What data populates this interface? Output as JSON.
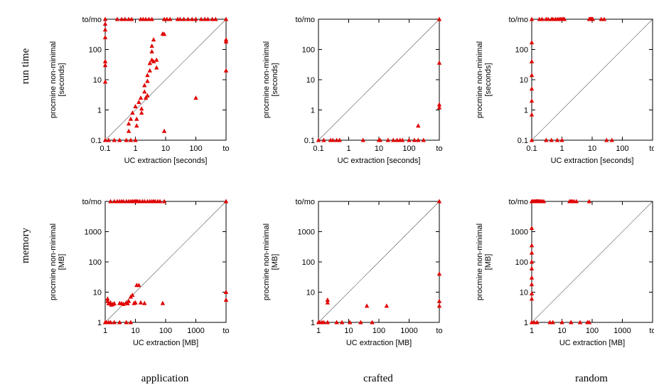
{
  "row_labels": [
    "run time",
    "memory"
  ],
  "column_labels": [
    "application",
    "crafted",
    "random"
  ],
  "colors": {
    "points": "#e00000",
    "axes": "#000000",
    "reference_lines": "#555555"
  },
  "chart_data": [
    {
      "type": "scatter",
      "row": "run time",
      "column": "application",
      "scale": "log",
      "xlabel": "UC extraction [seconds]",
      "ylabel": [
        "procmine non-minimal",
        "[seconds]"
      ],
      "xticks": [
        {
          "v": 0.1,
          "label": "0.1"
        },
        {
          "v": 1,
          "label": "1"
        },
        {
          "v": 10,
          "label": "10"
        },
        {
          "v": 100,
          "label": "100"
        },
        {
          "v": 1000,
          "label": "to"
        }
      ],
      "yticks": [
        {
          "v": 0.1,
          "label": "0.1"
        },
        {
          "v": 1,
          "label": "1"
        },
        {
          "v": 10,
          "label": "10"
        },
        {
          "v": 100,
          "label": "100"
        },
        {
          "v": 1000,
          "label": "to/mo"
        }
      ],
      "xlim": [
        0.1,
        1000
      ],
      "ylim": [
        0.1,
        1000
      ],
      "grid": false,
      "points": [
        [
          0.1,
          1000
        ],
        [
          0.1,
          700
        ],
        [
          0.1,
          450
        ],
        [
          0.1,
          250
        ],
        [
          0.1,
          40
        ],
        [
          0.1,
          30
        ],
        [
          0.1,
          8.5
        ],
        [
          0.1,
          0.1
        ],
        [
          0.13,
          0.1
        ],
        [
          0.2,
          0.1
        ],
        [
          0.3,
          0.1
        ],
        [
          0.5,
          0.1
        ],
        [
          0.7,
          0.1
        ],
        [
          1,
          0.1
        ],
        [
          0.6,
          0.2
        ],
        [
          0.6,
          0.35
        ],
        [
          0.7,
          0.5
        ],
        [
          0.8,
          0.8
        ],
        [
          1,
          1.3
        ],
        [
          1.1,
          0.3
        ],
        [
          1.1,
          0.5
        ],
        [
          1.3,
          1.8
        ],
        [
          1.5,
          2.5
        ],
        [
          1.6,
          1.1
        ],
        [
          1.6,
          0.8
        ],
        [
          2,
          4
        ],
        [
          2,
          6.5
        ],
        [
          2.2,
          2.5
        ],
        [
          2.5,
          3
        ],
        [
          2.5,
          9
        ],
        [
          2.5,
          14
        ],
        [
          3,
          35
        ],
        [
          3,
          20
        ],
        [
          3.5,
          130
        ],
        [
          3.5,
          85
        ],
        [
          3.5,
          45
        ],
        [
          4,
          40
        ],
        [
          4,
          210
        ],
        [
          5,
          45
        ],
        [
          5,
          25
        ],
        [
          8,
          330
        ],
        [
          9,
          320
        ],
        [
          9,
          0.2
        ],
        [
          100,
          2.5
        ],
        [
          0.25,
          1000
        ],
        [
          0.35,
          1000
        ],
        [
          0.45,
          1000
        ],
        [
          0.6,
          1000
        ],
        [
          0.75,
          1000
        ],
        [
          1.5,
          1000
        ],
        [
          1.8,
          1000
        ],
        [
          2.2,
          1000
        ],
        [
          2.8,
          1000
        ],
        [
          3.5,
          1000
        ],
        [
          9,
          1000
        ],
        [
          11,
          1000
        ],
        [
          14,
          1000
        ],
        [
          25,
          1000
        ],
        [
          30,
          1000
        ],
        [
          40,
          1000
        ],
        [
          55,
          1000
        ],
        [
          75,
          1000
        ],
        [
          100,
          1000
        ],
        [
          150,
          1000
        ],
        [
          200,
          1000
        ],
        [
          250,
          1000
        ],
        [
          350,
          1000
        ],
        [
          450,
          1000
        ],
        [
          1000,
          1000
        ],
        [
          1000,
          210
        ],
        [
          1000,
          180
        ],
        [
          1000,
          20
        ]
      ]
    },
    {
      "type": "scatter",
      "row": "run time",
      "column": "crafted",
      "scale": "log",
      "xlabel": "UC extraction [seconds]",
      "ylabel": [
        "procmine non-minimal",
        "[seconds]"
      ],
      "xticks": [
        {
          "v": 0.1,
          "label": "0.1"
        },
        {
          "v": 1,
          "label": "1"
        },
        {
          "v": 10,
          "label": "10"
        },
        {
          "v": 100,
          "label": "100"
        },
        {
          "v": 1000,
          "label": "to"
        }
      ],
      "yticks": [
        {
          "v": 0.1,
          "label": "0.1"
        },
        {
          "v": 1,
          "label": "1"
        },
        {
          "v": 10,
          "label": "10"
        },
        {
          "v": 100,
          "label": "100"
        },
        {
          "v": 1000,
          "label": "to/mo"
        }
      ],
      "xlim": [
        0.1,
        1000
      ],
      "ylim": [
        0.1,
        1000
      ],
      "grid": false,
      "points": [
        [
          0.1,
          0.1
        ],
        [
          0.15,
          0.1
        ],
        [
          0.25,
          0.1
        ],
        [
          0.3,
          0.1
        ],
        [
          0.4,
          0.1
        ],
        [
          0.5,
          0.1
        ],
        [
          3,
          0.1
        ],
        [
          10,
          0.1
        ],
        [
          11,
          0.1
        ],
        [
          20,
          0.1
        ],
        [
          30,
          0.1
        ],
        [
          40,
          0.1
        ],
        [
          50,
          0.1
        ],
        [
          60,
          0.1
        ],
        [
          100,
          0.1
        ],
        [
          150,
          0.1
        ],
        [
          200,
          0.1
        ],
        [
          300,
          0.1
        ],
        [
          200,
          0.3
        ],
        [
          1000,
          1000
        ],
        [
          1000,
          36
        ],
        [
          1000,
          1.5
        ],
        [
          1000,
          1.2
        ]
      ]
    },
    {
      "type": "scatter",
      "row": "run time",
      "column": "random",
      "scale": "log",
      "xlabel": "UC extraction [seconds]",
      "ylabel": [
        "procmine non-minimal",
        "[seconds]"
      ],
      "xticks": [
        {
          "v": 0.1,
          "label": "0.1"
        },
        {
          "v": 1,
          "label": "1"
        },
        {
          "v": 10,
          "label": "10"
        },
        {
          "v": 100,
          "label": "100"
        },
        {
          "v": 1000,
          "label": "to"
        }
      ],
      "yticks": [
        {
          "v": 0.1,
          "label": "0.1"
        },
        {
          "v": 1,
          "label": "1"
        },
        {
          "v": 10,
          "label": "10"
        },
        {
          "v": 100,
          "label": "100"
        },
        {
          "v": 1000,
          "label": "to/mo"
        }
      ],
      "xlim": [
        0.1,
        1000
      ],
      "ylim": [
        0.1,
        1000
      ],
      "grid": false,
      "points": [
        [
          0.1,
          1000
        ],
        [
          0.1,
          170
        ],
        [
          0.1,
          40
        ],
        [
          0.1,
          14
        ],
        [
          0.1,
          5
        ],
        [
          0.1,
          2
        ],
        [
          0.1,
          0.7
        ],
        [
          0.1,
          0.1
        ],
        [
          0.3,
          0.1
        ],
        [
          0.45,
          0.1
        ],
        [
          0.7,
          0.1
        ],
        [
          1,
          0.1
        ],
        [
          30,
          0.1
        ],
        [
          45,
          0.1
        ],
        [
          0.18,
          1000
        ],
        [
          0.22,
          1000
        ],
        [
          0.3,
          1000
        ],
        [
          0.35,
          1000
        ],
        [
          0.45,
          1000
        ],
        [
          0.5,
          1000
        ],
        [
          0.6,
          1000
        ],
        [
          0.7,
          1000
        ],
        [
          0.8,
          1000
        ],
        [
          0.9,
          1000
        ],
        [
          1,
          1000
        ],
        [
          1.1,
          1000
        ],
        [
          1.2,
          1000
        ],
        [
          8,
          1000
        ],
        [
          8.5,
          1000
        ],
        [
          9,
          1000
        ],
        [
          9.5,
          1000
        ],
        [
          10,
          1000
        ],
        [
          10.5,
          1000
        ],
        [
          20,
          1000
        ],
        [
          25,
          1000
        ]
      ]
    },
    {
      "type": "scatter",
      "row": "memory",
      "column": "application",
      "scale": "log",
      "xlabel": "UC extraction [MB]",
      "ylabel": [
        "procmine non-minimal",
        "[MB]"
      ],
      "xticks": [
        {
          "v": 1,
          "label": "1"
        },
        {
          "v": 10,
          "label": "10"
        },
        {
          "v": 100,
          "label": "100"
        },
        {
          "v": 1000,
          "label": "1000"
        },
        {
          "v": 10000,
          "label": "to"
        }
      ],
      "yticks": [
        {
          "v": 1,
          "label": "1"
        },
        {
          "v": 10,
          "label": "10"
        },
        {
          "v": 100,
          "label": "100"
        },
        {
          "v": 1000,
          "label": "1000"
        },
        {
          "v": 10000,
          "label": "to/mo"
        }
      ],
      "xlim": [
        1,
        10000
      ],
      "ylim": [
        1,
        10000
      ],
      "grid": false,
      "points": [
        [
          1,
          1
        ],
        [
          1.1,
          1
        ],
        [
          1.3,
          1
        ],
        [
          1.5,
          1
        ],
        [
          2,
          1
        ],
        [
          3,
          1
        ],
        [
          5,
          1
        ],
        [
          7,
          1
        ],
        [
          1.2,
          6
        ],
        [
          1.2,
          5
        ],
        [
          1.3,
          4.2
        ],
        [
          1.5,
          4.5
        ],
        [
          1.6,
          3.8
        ],
        [
          1.8,
          4
        ],
        [
          2,
          4.2
        ],
        [
          3,
          4.3
        ],
        [
          3.5,
          4.2
        ],
        [
          4,
          4
        ],
        [
          5,
          4.5
        ],
        [
          5.5,
          4.2
        ],
        [
          6,
          5
        ],
        [
          7,
          7
        ],
        [
          8,
          8
        ],
        [
          9,
          4.3
        ],
        [
          10,
          4.5
        ],
        [
          11,
          17
        ],
        [
          13,
          17
        ],
        [
          15,
          4.5
        ],
        [
          20,
          4.3
        ],
        [
          80,
          4.3
        ],
        [
          10000,
          10
        ],
        [
          10000,
          5.5
        ],
        [
          10000,
          10000
        ],
        [
          1.5,
          10000
        ],
        [
          2,
          10000
        ],
        [
          2.5,
          10000
        ],
        [
          3,
          10000
        ],
        [
          3.5,
          10000
        ],
        [
          4,
          10000
        ],
        [
          5,
          10000
        ],
        [
          6,
          10000
        ],
        [
          7,
          10000
        ],
        [
          8,
          10000
        ],
        [
          9,
          10000
        ],
        [
          10,
          10000
        ],
        [
          11,
          10000
        ],
        [
          12,
          10000
        ],
        [
          14,
          10000
        ],
        [
          17,
          10000
        ],
        [
          20,
          10000
        ],
        [
          25,
          10000
        ],
        [
          30,
          10000
        ],
        [
          35,
          10000
        ],
        [
          40,
          10000
        ],
        [
          45,
          10000
        ],
        [
          55,
          10000
        ],
        [
          65,
          10000
        ],
        [
          90,
          10000
        ]
      ]
    },
    {
      "type": "scatter",
      "row": "memory",
      "column": "crafted",
      "scale": "log",
      "xlabel": "UC extraction [MB]",
      "ylabel": [
        "procmine non-minimal",
        "[MB]"
      ],
      "xticks": [
        {
          "v": 1,
          "label": "1"
        },
        {
          "v": 10,
          "label": "10"
        },
        {
          "v": 100,
          "label": "100"
        },
        {
          "v": 1000,
          "label": "1000"
        },
        {
          "v": 10000,
          "label": "to"
        }
      ],
      "yticks": [
        {
          "v": 1,
          "label": "1"
        },
        {
          "v": 10,
          "label": "10"
        },
        {
          "v": 100,
          "label": "100"
        },
        {
          "v": 1000,
          "label": "1000"
        },
        {
          "v": 10000,
          "label": "to/mo"
        }
      ],
      "xlim": [
        1,
        10000
      ],
      "ylim": [
        1,
        10000
      ],
      "grid": false,
      "points": [
        [
          1,
          1
        ],
        [
          1.1,
          1
        ],
        [
          1.3,
          1
        ],
        [
          1.5,
          1
        ],
        [
          2,
          1
        ],
        [
          2,
          5.5
        ],
        [
          2,
          4.5
        ],
        [
          4,
          1
        ],
        [
          6,
          1
        ],
        [
          11,
          1
        ],
        [
          25,
          1
        ],
        [
          40,
          3.5
        ],
        [
          60,
          1
        ],
        [
          180,
          3.5
        ],
        [
          10000,
          10000
        ],
        [
          10000,
          40
        ],
        [
          10000,
          5
        ],
        [
          10000,
          3.5
        ]
      ]
    },
    {
      "type": "scatter",
      "row": "memory",
      "column": "random",
      "scale": "log",
      "xlabel": "UC extraction [MB]",
      "ylabel": [
        "procmine non-minimal",
        "[MB]"
      ],
      "xticks": [
        {
          "v": 1,
          "label": "1"
        },
        {
          "v": 10,
          "label": "10"
        },
        {
          "v": 100,
          "label": "100"
        },
        {
          "v": 1000,
          "label": "1000"
        },
        {
          "v": 10000,
          "label": "to"
        }
      ],
      "yticks": [
        {
          "v": 1,
          "label": "1"
        },
        {
          "v": 10,
          "label": "10"
        },
        {
          "v": 100,
          "label": "100"
        },
        {
          "v": 1000,
          "label": "1000"
        },
        {
          "v": 10000,
          "label": "to/mo"
        }
      ],
      "xlim": [
        1,
        10000
      ],
      "ylim": [
        1,
        10000
      ],
      "grid": false,
      "points": [
        [
          1,
          10000
        ],
        [
          1,
          1300
        ],
        [
          1,
          350
        ],
        [
          1,
          200
        ],
        [
          1,
          100
        ],
        [
          1,
          60
        ],
        [
          1,
          30
        ],
        [
          1,
          18
        ],
        [
          1,
          9
        ],
        [
          1,
          6
        ],
        [
          1,
          1
        ],
        [
          1.2,
          1
        ],
        [
          1.5,
          1
        ],
        [
          4,
          1
        ],
        [
          5,
          1
        ],
        [
          10,
          1
        ],
        [
          20,
          1
        ],
        [
          40,
          1
        ],
        [
          70,
          1
        ],
        [
          80,
          1
        ],
        [
          1.1,
          10000
        ],
        [
          1.2,
          10000
        ],
        [
          1.3,
          10000
        ],
        [
          1.4,
          10000
        ],
        [
          1.5,
          10000
        ],
        [
          1.6,
          10000
        ],
        [
          1.7,
          10000
        ],
        [
          1.8,
          10000
        ],
        [
          2,
          10000
        ],
        [
          2.2,
          10000
        ],
        [
          2.5,
          10000
        ],
        [
          18,
          10000
        ],
        [
          20,
          10000
        ],
        [
          22,
          10000
        ],
        [
          25,
          10000
        ],
        [
          30,
          10000
        ],
        [
          80,
          10000
        ]
      ]
    }
  ]
}
